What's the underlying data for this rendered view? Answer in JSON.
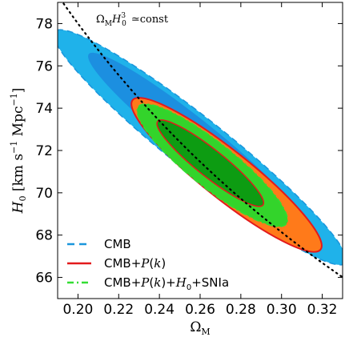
{
  "chart_data": {
    "type": "contour",
    "title": "",
    "annotation": "Ω_M H_0^3 ≃const",
    "xlabel": "Ω_M",
    "ylabel": "H_0 [km s^-1 Mpc^-1]",
    "xlim": [
      0.19,
      0.33
    ],
    "ylim": [
      65.0,
      79.0
    ],
    "xticks": [
      "0.20",
      "0.22",
      "0.24",
      "0.26",
      "0.28",
      "0.30",
      "0.32"
    ],
    "yticks": [
      "66",
      "68",
      "70",
      "72",
      "74",
      "76",
      "78"
    ],
    "grid": false,
    "legend_position": "bottom-left",
    "colors": {
      "cmb_outer": "#1fb2ea",
      "cmb_inner": "#1c8fe0",
      "pk_outer": "#ff7a1a",
      "pk_inner": "#e53b1e",
      "sn_outer": "#33d42b",
      "sn_inner": "#0d9c12",
      "cmb_line": "#1a96dc",
      "pk_line": "#e31a1c",
      "sn_line": "#33dd33"
    },
    "const_line": {
      "label": "Ω_M H_0^3 ≃const",
      "x_range": [
        0.19,
        0.33
      ],
      "y_at_x_0_20": 78.0
    },
    "series": [
      {
        "name": "CMB",
        "style": "dashed",
        "center": [
          0.262,
          72.2
        ],
        "levels": [
          "68%",
          "95%"
        ],
        "x_extent": [
          0.195,
          0.323
        ],
        "y_extent": [
          66.4,
          78.0
        ]
      },
      {
        "name": "CMB+P(k)",
        "style": "solid",
        "center": [
          0.272,
          70.9
        ],
        "levels": [
          "68%",
          "95%"
        ],
        "x_extent": [
          0.23,
          0.315
        ],
        "y_extent": [
          67.0,
          74.8
        ]
      },
      {
        "name": "CMB+P(k)+H_0+SNIa",
        "style": "dashdot",
        "center": [
          0.266,
          71.3
        ],
        "levels": [
          "68%",
          "95%"
        ],
        "x_extent": [
          0.232,
          0.302
        ],
        "y_extent": [
          68.2,
          74.5
        ]
      }
    ]
  }
}
